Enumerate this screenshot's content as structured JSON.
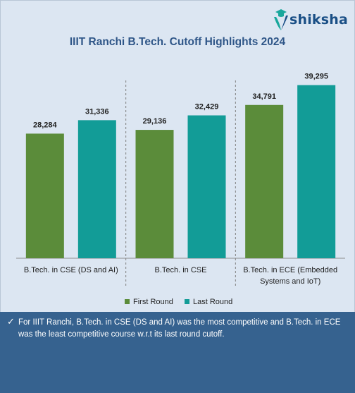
{
  "brand": {
    "name": "shiksha"
  },
  "colors": {
    "background": "#dce6f2",
    "first_round": "#5b8c3a",
    "last_round": "#129c97",
    "title": "#2f5688",
    "footer_bg": "#36628f"
  },
  "chart_data": {
    "type": "bar",
    "title": "IIIT Ranchi B.Tech. Cutoff Highlights 2024",
    "categories": [
      "B.Tech. in CSE (DS and AI)",
      "B.Tech. in CSE",
      "B.Tech. in ECE (Embedded Systems and IoT)"
    ],
    "category_lines": [
      [
        "B.Tech. in CSE (DS and AI)"
      ],
      [
        "B.Tech. in CSE"
      ],
      [
        "B.Tech. in ECE (Embedded",
        "Systems and IoT)"
      ]
    ],
    "series": [
      {
        "name": "First Round",
        "values": [
          28284,
          29136,
          34791
        ],
        "labels": [
          "28,284",
          "29,136",
          "34,791"
        ]
      },
      {
        "name": "Last Round",
        "values": [
          31336,
          32429,
          39295
        ],
        "labels": [
          "31,336",
          "32,429",
          "39,295"
        ]
      }
    ],
    "ylim": [
      0,
      41000
    ],
    "grid": false,
    "legend": "bottom"
  },
  "note": {
    "icon": "check-icon",
    "text": "For IIIT Ranchi, B.Tech. in CSE (DS and AI) was the most competitive and B.Tech. in ECE was the least competitive course w.r.t its last round cutoff."
  }
}
